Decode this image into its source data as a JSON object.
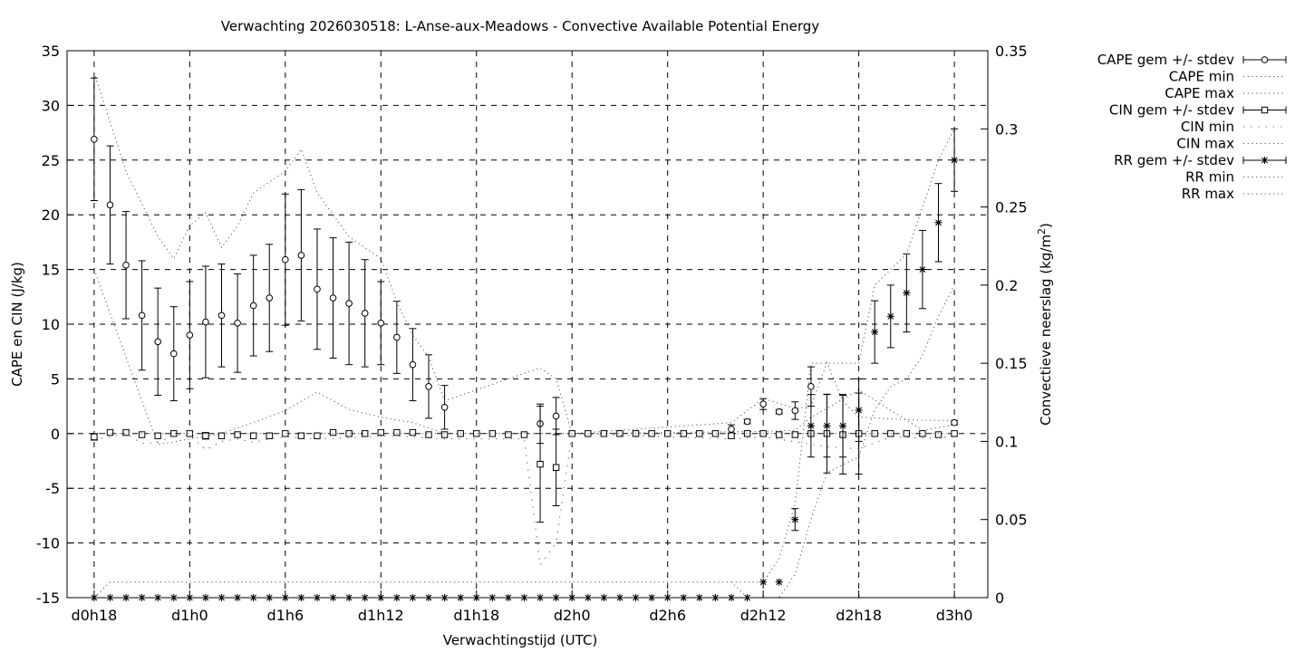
{
  "chart_data": {
    "type": "line",
    "title": "Verwachting 2026030518: L-Anse-aux-Meadows - Convective Available Potential Energy",
    "xlabel": "Verwachtingstijd (UTC)",
    "ylabel": "CAPE en CIN (J/kg)",
    "y2label_main": "Convectieve neerslag (kg/m",
    "y2label_sup": "2",
    "y2label_end": ")",
    "x_ticks": [
      {
        "hour": 18,
        "label": "d0h18"
      },
      {
        "hour": 24,
        "label": "d1h0"
      },
      {
        "hour": 30,
        "label": "d1h6"
      },
      {
        "hour": 36,
        "label": "d1h12"
      },
      {
        "hour": 42,
        "label": "d1h18"
      },
      {
        "hour": 48,
        "label": "d2h0"
      },
      {
        "hour": 54,
        "label": "d2h6"
      },
      {
        "hour": 60,
        "label": "d2h12"
      },
      {
        "hour": 66,
        "label": "d2h18"
      },
      {
        "hour": 72,
        "label": "d3h0"
      }
    ],
    "xlim": [
      16.3,
      74.1
    ],
    "ylim": [
      -15,
      35
    ],
    "y_ticks": [
      -15,
      -10,
      -5,
      0,
      5,
      10,
      15,
      20,
      25,
      30,
      35
    ],
    "y2lim": [
      0,
      0.35
    ],
    "y2_ticks": [
      {
        "value": 0,
        "label": "0"
      },
      {
        "value": 0.05,
        "label": "0.05"
      },
      {
        "value": 0.1,
        "label": "0.1"
      },
      {
        "value": 0.15,
        "label": "0.15"
      },
      {
        "value": 0.2,
        "label": "0.2"
      },
      {
        "value": 0.25,
        "label": "0.25"
      },
      {
        "value": 0.3,
        "label": "0.3"
      },
      {
        "value": 0.35,
        "label": "0.35"
      }
    ],
    "grid": true,
    "legend_position": "outside-right",
    "series": [
      {
        "name": "CAPE gem +/- stdev",
        "marker": "circle",
        "x": [
          18,
          19,
          20,
          21,
          22,
          23,
          24,
          25,
          26,
          27,
          28,
          29,
          30,
          31,
          32,
          33,
          34,
          35,
          36,
          37,
          38,
          39,
          40,
          46,
          47,
          58,
          59,
          60,
          61,
          62,
          63,
          72
        ],
        "y": [
          26.9,
          20.9,
          15.4,
          10.8,
          8.4,
          7.3,
          9.0,
          10.2,
          10.8,
          10.1,
          11.7,
          12.4,
          15.9,
          16.3,
          13.2,
          12.4,
          11.9,
          11.0,
          10.1,
          8.8,
          6.3,
          4.3,
          2.4,
          0.9,
          1.6,
          0.4,
          1.1,
          2.7,
          2.0,
          2.1,
          4.3,
          1.0
        ],
        "err": [
          5.6,
          5.4,
          4.9,
          5.0,
          4.9,
          4.3,
          4.9,
          5.1,
          4.7,
          4.5,
          4.6,
          4.9,
          6.0,
          6.0,
          5.5,
          5.5,
          5.6,
          4.9,
          3.8,
          3.3,
          3.3,
          2.9,
          2.0,
          1.8,
          1.7,
          0.4,
          0.2,
          0.5,
          0.2,
          0.8,
          1.8,
          0.2
        ]
      },
      {
        "name": "CAPE min",
        "pattern": "dot",
        "x": [
          18,
          20,
          22,
          24,
          26,
          28,
          30,
          32,
          34,
          36,
          38,
          40,
          46,
          47,
          48,
          60,
          62,
          63,
          64,
          66,
          70,
          72
        ],
        "y": [
          15,
          7,
          -1,
          -0.5,
          0,
          1,
          2.1,
          3.8,
          2.2,
          1.5,
          1,
          0,
          0,
          0,
          0,
          0.2,
          0.3,
          1.5,
          2.3,
          4,
          0.3,
          0.8
        ]
      },
      {
        "name": "CAPE max",
        "pattern": "dot",
        "x": [
          18,
          20,
          22,
          23,
          24,
          25,
          26,
          27,
          28,
          29,
          30,
          31,
          32,
          33,
          34,
          35,
          36,
          37,
          38,
          39,
          40,
          46,
          47,
          48,
          58,
          60,
          62,
          63,
          64,
          65,
          66,
          70,
          72
        ],
        "y": [
          33,
          24,
          18,
          16,
          19,
          20.2,
          17,
          19,
          22,
          23,
          24,
          26,
          22,
          20,
          18,
          17,
          16,
          12,
          9,
          7,
          3,
          6,
          5,
          0,
          1,
          3.2,
          2.3,
          2.5,
          6.5,
          3,
          1.5,
          1.2,
          1.2
        ]
      },
      {
        "name": "CIN gem +/- stdev",
        "marker": "square",
        "x": [
          18,
          19,
          20,
          21,
          22,
          23,
          24,
          25,
          26,
          27,
          28,
          29,
          30,
          31,
          32,
          33,
          34,
          35,
          36,
          37,
          38,
          39,
          40,
          41,
          42,
          43,
          44,
          45,
          46,
          47,
          48,
          49,
          50,
          51,
          52,
          53,
          54,
          55,
          56,
          57,
          58,
          59,
          60,
          61,
          62,
          63,
          64,
          65,
          66,
          67,
          68,
          69,
          70,
          71,
          72
        ],
        "y": [
          -0.3,
          0.1,
          0.1,
          -0.1,
          -0.2,
          0,
          0,
          -0.2,
          -0.2,
          -0.1,
          -0.2,
          -0.2,
          0,
          -0.2,
          -0.2,
          0.1,
          0,
          0,
          0.1,
          0.1,
          0.1,
          -0.1,
          -0.1,
          0,
          0,
          0,
          -0.1,
          -0.1,
          -2.8,
          -3.1,
          0,
          0,
          0,
          0,
          0,
          0,
          0,
          0,
          0,
          0,
          -0.2,
          0,
          0,
          -0.1,
          -0.1,
          0,
          0,
          -0.1,
          0,
          0,
          0,
          0,
          0,
          -0.1,
          0
        ],
        "err": [
          0.3,
          0,
          0,
          0,
          0,
          0,
          0,
          0.3,
          0,
          0,
          0,
          0,
          0,
          0,
          0,
          0,
          0,
          0,
          0,
          0,
          0,
          0,
          0,
          0,
          0,
          0,
          0,
          0,
          5.3,
          3.5,
          0,
          0,
          0,
          0,
          0,
          0,
          0,
          0,
          0,
          0,
          0.2,
          0,
          0,
          0,
          0,
          0,
          3.6,
          3.6,
          3.7,
          0,
          0,
          0,
          0,
          0,
          0
        ]
      },
      {
        "name": "CIN min",
        "pattern": "sparse",
        "x": [
          18,
          20,
          21,
          22,
          23,
          24,
          25,
          26,
          27,
          28,
          29,
          30,
          32,
          34,
          36,
          38,
          40,
          44,
          45,
          46,
          47,
          48,
          58,
          60,
          64,
          66,
          68,
          70,
          72
        ],
        "y": [
          -0.6,
          0,
          -0.9,
          -0.8,
          -0.2,
          -0.1,
          -1.5,
          -0.7,
          -0.5,
          -0.8,
          -0.5,
          -0.3,
          -0.5,
          -0.4,
          -0.2,
          -0.3,
          -0.5,
          -0.5,
          -0.5,
          -12,
          -10,
          0,
          -0.5,
          -0.3,
          -1.2,
          -1.4,
          -0.3,
          -0.4,
          -0.3
        ]
      },
      {
        "name": "CIN max",
        "pattern": "dot",
        "x": [
          18,
          72
        ],
        "y": [
          0,
          0
        ]
      },
      {
        "name": "RR gem +/- stdev",
        "marker": "star",
        "axis": "y2",
        "x": [
          18,
          19,
          20,
          21,
          22,
          23,
          24,
          25,
          26,
          27,
          28,
          29,
          30,
          31,
          32,
          33,
          34,
          35,
          36,
          37,
          38,
          39,
          40,
          41,
          42,
          43,
          44,
          45,
          46,
          47,
          48,
          49,
          50,
          51,
          52,
          53,
          54,
          55,
          56,
          57,
          58,
          59,
          60,
          61,
          62,
          63,
          64,
          65,
          66,
          67,
          68,
          69,
          70,
          71,
          72
        ],
        "y": [
          0,
          0,
          0,
          0,
          0,
          0,
          0,
          0,
          0,
          0,
          0,
          0,
          0,
          0,
          0,
          0,
          0,
          0,
          0,
          0,
          0,
          0,
          0,
          0,
          0,
          0,
          0,
          0,
          0,
          0,
          0,
          0,
          0,
          0,
          0,
          0,
          0,
          0,
          0,
          0,
          0,
          0,
          0.01,
          0.01,
          0.05,
          0.11,
          0.11,
          0.11,
          0.12,
          0.17,
          0.18,
          0.195,
          0.21,
          0.24,
          0.28
        ],
        "err": [
          0,
          0,
          0,
          0,
          0,
          0,
          0,
          0,
          0,
          0,
          0,
          0,
          0,
          0,
          0,
          0,
          0,
          0,
          0,
          0,
          0,
          0,
          0,
          0,
          0,
          0,
          0,
          0,
          0,
          0,
          0,
          0,
          0,
          0,
          0,
          0,
          0,
          0,
          0,
          0,
          0,
          0,
          0,
          0,
          0.007,
          0.02,
          0.02,
          0.02,
          0.02,
          0.02,
          0.02,
          0.025,
          0.025,
          0.025,
          0.02
        ]
      },
      {
        "name": "RR min",
        "pattern": "dot",
        "axis": "y2",
        "x": [
          18,
          19,
          58,
          59,
          60,
          61,
          62,
          63,
          64,
          65,
          66,
          67,
          68,
          69,
          70,
          71,
          72
        ],
        "y": [
          0,
          0.01,
          0.01,
          0,
          0,
          0,
          0.015,
          0.05,
          0.08,
          0.085,
          0.09,
          0.12,
          0.135,
          0.14,
          0.155,
          0.18,
          0.2
        ]
      },
      {
        "name": "RR max",
        "pattern": "dot",
        "axis": "y2",
        "x": [
          58,
          59,
          60,
          61,
          62,
          63,
          64,
          65,
          66,
          67,
          68,
          69,
          70,
          71,
          72
        ],
        "y": [
          0.01,
          0.01,
          0.01,
          0.025,
          0.06,
          0.15,
          0.15,
          0.15,
          0.15,
          0.2,
          0.21,
          0.22,
          0.25,
          0.28,
          0.3
        ]
      }
    ]
  }
}
